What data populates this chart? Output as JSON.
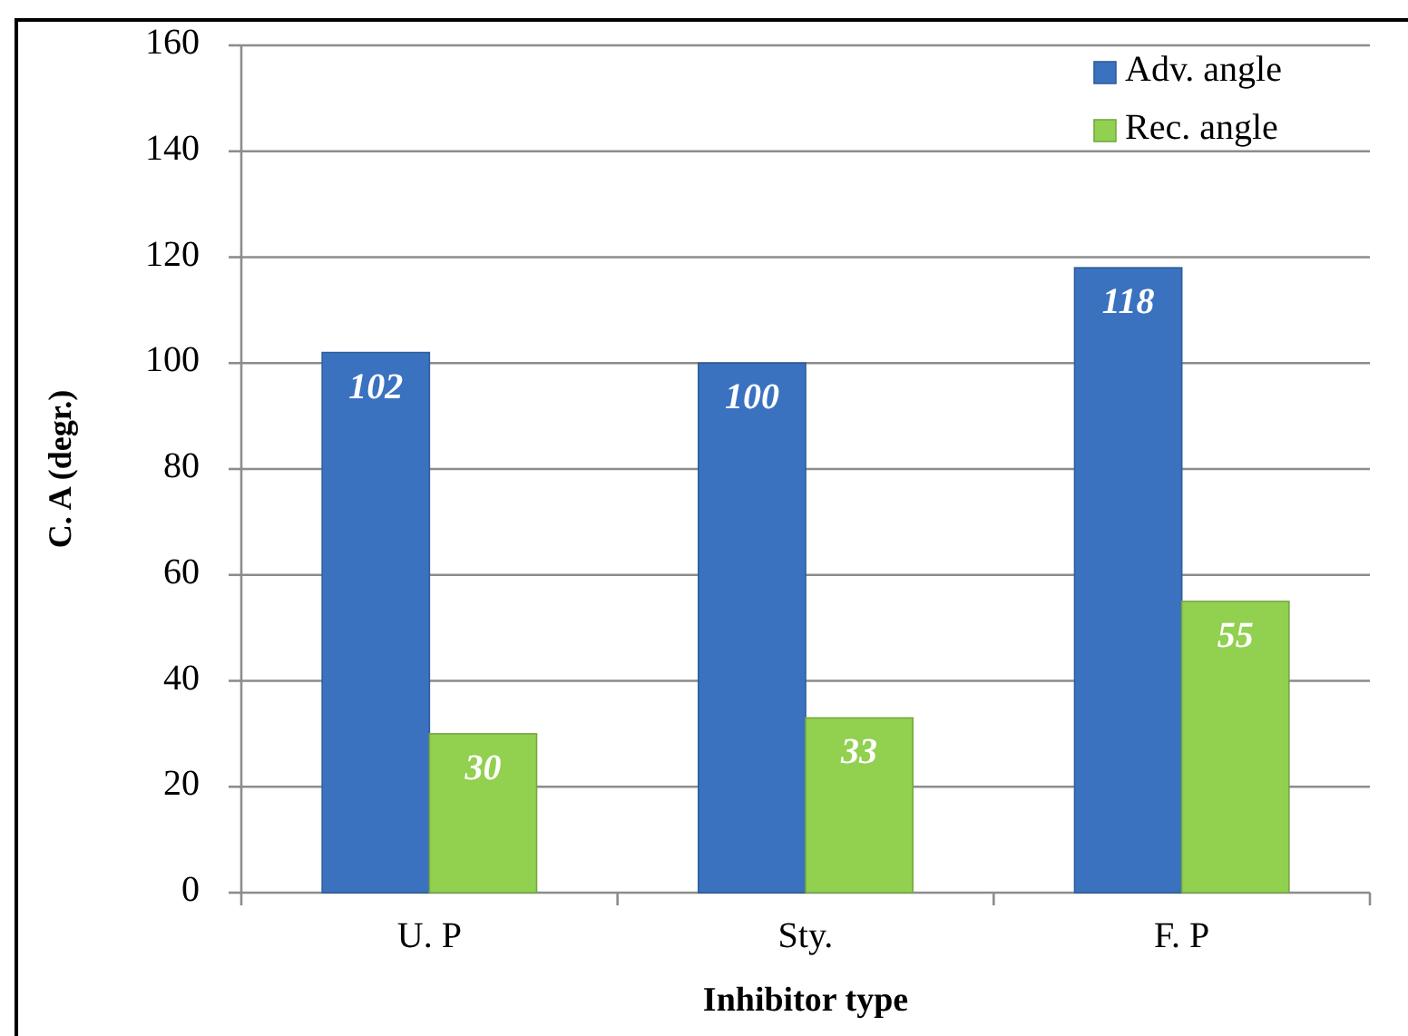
{
  "chart_data": {
    "type": "bar",
    "xlabel": "Inhibitor type",
    "ylabel": "C. A (degr.)",
    "categories": [
      "U. P",
      "Sty.",
      "F. P"
    ],
    "series": [
      {
        "name": "Adv. angle",
        "color": "#3a72c0",
        "values": [
          102,
          100,
          118
        ]
      },
      {
        "name": "Rec. angle",
        "color": "#92d050",
        "values": [
          30,
          33,
          55
        ]
      }
    ],
    "ylim": [
      0,
      160
    ],
    "yticks": [
      0,
      20,
      40,
      60,
      80,
      100,
      120,
      140,
      160
    ],
    "grid": "y",
    "legend": "top right",
    "data_labels": true
  }
}
